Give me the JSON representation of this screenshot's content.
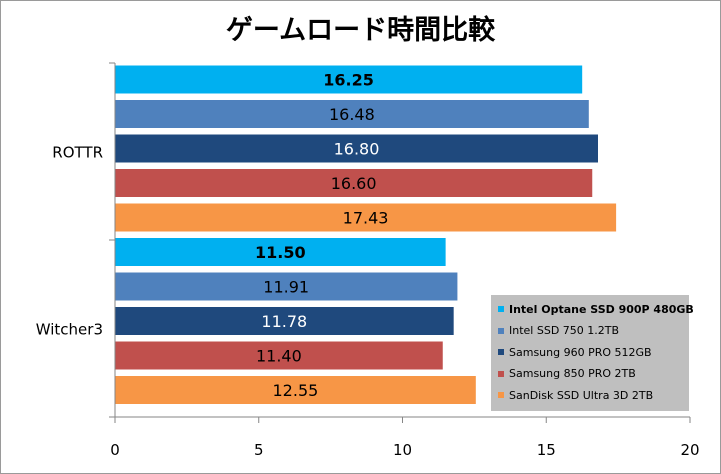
{
  "chart_data": {
    "type": "bar",
    "orientation": "horizontal",
    "title": "ゲームロード時間比較",
    "categories": [
      "ROTTR",
      "Witcher3"
    ],
    "series": [
      {
        "name": "Intel Optane SSD 900P 480GB",
        "values": [
          16.25,
          11.5
        ],
        "labels": [
          "16.25",
          "11.50"
        ],
        "color": "#00B0F0",
        "bold": true
      },
      {
        "name": "Intel SSD 750 1.2TB",
        "values": [
          16.48,
          11.91
        ],
        "labels": [
          "16.48",
          "11.91"
        ],
        "color": "#4F81BD",
        "bold": false
      },
      {
        "name": "Samsung 960 PRO 512GB",
        "values": [
          16.8,
          11.78
        ],
        "labels": [
          "16.80",
          "11.78"
        ],
        "color": "#1F497D",
        "bold": false
      },
      {
        "name": "Samsung 850 PRO 2TB",
        "values": [
          16.6,
          11.4
        ],
        "labels": [
          "16.60",
          "11.40"
        ],
        "color": "#C0504D",
        "bold": false
      },
      {
        "name": "SanDisk SSD Ultra 3D 2TB",
        "values": [
          17.43,
          12.55
        ],
        "labels": [
          "17.43",
          "12.55"
        ],
        "color": "#F79646",
        "bold": false
      }
    ],
    "xlim": [
      0,
      20
    ],
    "xticks": [
      0,
      5,
      10,
      15,
      20
    ],
    "xlabel": "",
    "ylabel": "",
    "grid": false,
    "legend_position": "bottom-right"
  }
}
